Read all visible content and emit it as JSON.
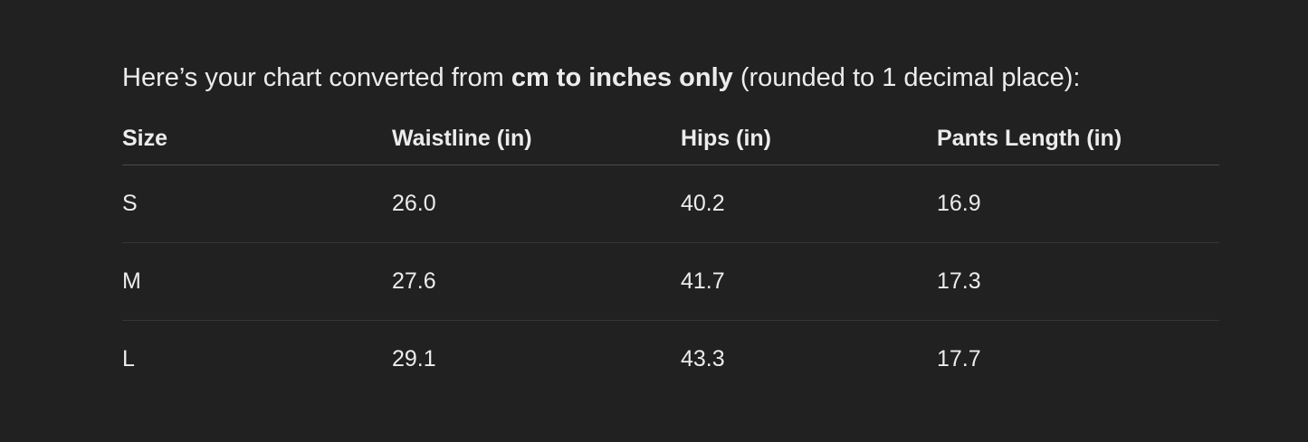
{
  "intro": {
    "before": "Here’s your chart converted from ",
    "bold": "cm to inches only",
    "after": " (rounded to 1 decimal place):"
  },
  "table": {
    "headers": [
      "Size",
      "Waistline (in)",
      "Hips (in)",
      "Pants Length (in)"
    ],
    "rows": [
      [
        "S",
        "26.0",
        "40.2",
        "16.9"
      ],
      [
        "M",
        "27.6",
        "41.7",
        "17.3"
      ],
      [
        "L",
        "29.1",
        "43.3",
        "17.7"
      ]
    ]
  }
}
